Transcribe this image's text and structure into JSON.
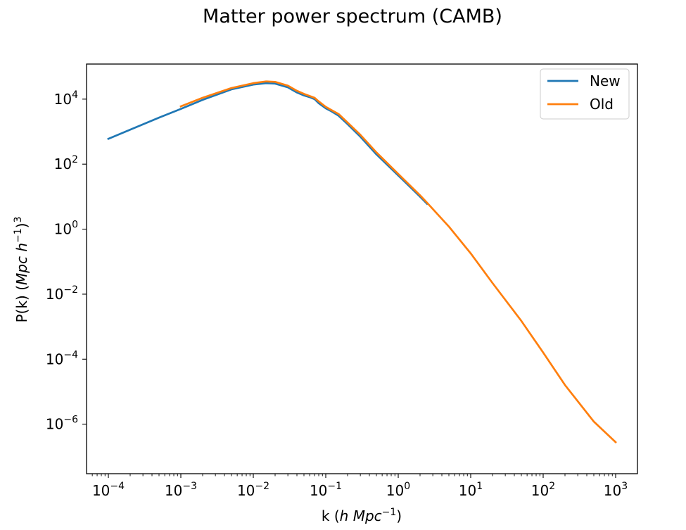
{
  "chart_data": {
    "type": "line",
    "title": "Matter power spectrum (CAMB)",
    "xlabel_parts": [
      "k (",
      "h Mpc",
      "−1",
      ")"
    ],
    "ylabel_parts": [
      "P(k) (",
      "Mpc h",
      "−1",
      ")",
      "3"
    ],
    "xscale": "log",
    "yscale": "log",
    "xlim": [
      5e-05,
      2000
    ],
    "ylim": [
      3e-08,
      120000
    ],
    "x_ticks": [
      0.0001,
      0.001,
      0.01,
      0.1,
      1,
      10,
      100,
      1000
    ],
    "x_tick_labels": [
      {
        "base": "10",
        "exp": "−4"
      },
      {
        "base": "10",
        "exp": "−3"
      },
      {
        "base": "10",
        "exp": "−2"
      },
      {
        "base": "10",
        "exp": "−1"
      },
      {
        "base": "10",
        "exp": "0"
      },
      {
        "base": "10",
        "exp": "1"
      },
      {
        "base": "10",
        "exp": "2"
      },
      {
        "base": "10",
        "exp": "3"
      }
    ],
    "y_ticks": [
      1e-06,
      0.0001,
      0.01,
      1,
      100,
      10000
    ],
    "y_tick_labels": [
      {
        "base": "10",
        "exp": "−6"
      },
      {
        "base": "10",
        "exp": "−4"
      },
      {
        "base": "10",
        "exp": "−2"
      },
      {
        "base": "10",
        "exp": "0"
      },
      {
        "base": "10",
        "exp": "2"
      },
      {
        "base": "10",
        "exp": "4"
      }
    ],
    "grid": false,
    "legend_position": "top-right",
    "series": [
      {
        "name": "New",
        "color": "#1f77b4",
        "x": [
          0.0001,
          0.0002,
          0.0005,
          0.001,
          0.002,
          0.005,
          0.01,
          0.015,
          0.02,
          0.03,
          0.04,
          0.05,
          0.06,
          0.07,
          0.08,
          0.1,
          0.12,
          0.15,
          0.2,
          0.3,
          0.5,
          1,
          2,
          2.5
        ],
        "y": [
          600,
          1150,
          2700,
          5000,
          9500,
          20000,
          28000,
          31000,
          30000,
          23000,
          16000,
          13000,
          11500,
          10000,
          7500,
          5200,
          4200,
          3100,
          1700,
          700,
          200,
          45,
          10,
          6
        ]
      },
      {
        "name": "Old",
        "color": "#ff7f0e",
        "x": [
          0.001,
          0.002,
          0.005,
          0.01,
          0.015,
          0.02,
          0.03,
          0.04,
          0.05,
          0.06,
          0.07,
          0.08,
          0.1,
          0.12,
          0.15,
          0.2,
          0.3,
          0.5,
          1,
          2,
          2.5,
          5,
          10,
          20,
          50,
          100,
          200,
          500,
          1000
        ],
        "y": [
          6000,
          11000,
          22000,
          31000,
          35000,
          34000,
          26000,
          18000,
          14500,
          12500,
          11000,
          8500,
          5800,
          4600,
          3500,
          1900,
          800,
          230,
          50,
          11,
          6.5,
          1.2,
          0.18,
          0.022,
          0.0015,
          0.00016,
          1.6e-05,
          1.2e-06,
          2.8e-07
        ]
      }
    ]
  }
}
